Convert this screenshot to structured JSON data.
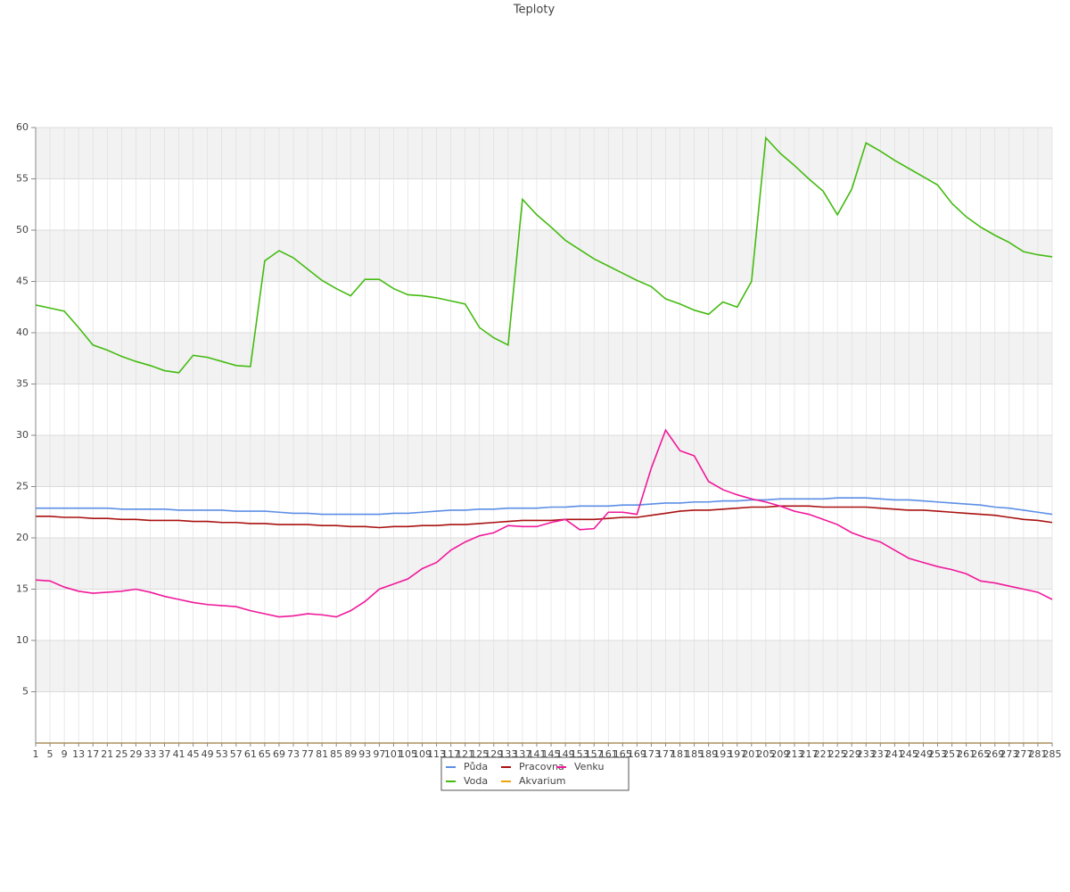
{
  "chart_data": {
    "type": "line",
    "title": "Teploty",
    "x": [
      1,
      5,
      9,
      13,
      17,
      21,
      25,
      29,
      33,
      37,
      41,
      45,
      49,
      53,
      57,
      61,
      65,
      69,
      73,
      77,
      81,
      85,
      89,
      93,
      97,
      101,
      105,
      109,
      113,
      117,
      121,
      125,
      129,
      133,
      137,
      141,
      145,
      149,
      153,
      157,
      161,
      165,
      169,
      173,
      177,
      181,
      185,
      189,
      193,
      197,
      201,
      205,
      209,
      213,
      217,
      221,
      225,
      229,
      233,
      237,
      241,
      245,
      249,
      253,
      257,
      261,
      265,
      269,
      273,
      277,
      281,
      285
    ],
    "xlim": [
      1,
      285
    ],
    "ylim": [
      0,
      60
    ],
    "yticks": [
      5,
      10,
      15,
      20,
      25,
      30,
      35,
      40,
      45,
      50,
      55,
      60
    ],
    "grid": true,
    "series": [
      {
        "name": "Půda",
        "color": "#5b8ee6",
        "values": [
          22.9,
          22.9,
          22.9,
          22.9,
          22.9,
          22.9,
          22.8,
          22.8,
          22.8,
          22.8,
          22.7,
          22.7,
          22.7,
          22.7,
          22.6,
          22.6,
          22.6,
          22.5,
          22.4,
          22.4,
          22.3,
          22.3,
          22.3,
          22.3,
          22.3,
          22.4,
          22.4,
          22.5,
          22.6,
          22.7,
          22.7,
          22.8,
          22.8,
          22.9,
          22.9,
          22.9,
          23.0,
          23.0,
          23.1,
          23.1,
          23.1,
          23.2,
          23.2,
          23.3,
          23.4,
          23.4,
          23.5,
          23.5,
          23.6,
          23.6,
          23.7,
          23.7,
          23.8,
          23.8,
          23.8,
          23.8,
          23.9,
          23.9,
          23.9,
          23.8,
          23.7,
          23.7,
          23.6,
          23.5,
          23.4,
          23.3,
          23.2,
          23.0,
          22.9,
          22.7,
          22.5,
          22.3
        ]
      },
      {
        "name": "Pracovna",
        "color": "#aa1111",
        "values": [
          22.1,
          22.1,
          22.0,
          22.0,
          21.9,
          21.9,
          21.8,
          21.8,
          21.7,
          21.7,
          21.7,
          21.6,
          21.6,
          21.5,
          21.5,
          21.4,
          21.4,
          21.3,
          21.3,
          21.3,
          21.2,
          21.2,
          21.1,
          21.1,
          21.0,
          21.1,
          21.1,
          21.2,
          21.2,
          21.3,
          21.3,
          21.4,
          21.5,
          21.6,
          21.7,
          21.7,
          21.7,
          21.8,
          21.8,
          21.8,
          21.9,
          22.0,
          22.0,
          22.2,
          22.4,
          22.6,
          22.7,
          22.7,
          22.8,
          22.9,
          23.0,
          23.0,
          23.1,
          23.1,
          23.1,
          23.0,
          23.0,
          23.0,
          23.0,
          22.9,
          22.8,
          22.7,
          22.7,
          22.6,
          22.5,
          22.4,
          22.3,
          22.2,
          22.0,
          21.8,
          21.7,
          21.5
        ]
      },
      {
        "name": "Venku",
        "color": "#f0189a",
        "values": [
          15.9,
          15.8,
          15.2,
          14.8,
          14.6,
          14.7,
          14.8,
          15.0,
          14.7,
          14.3,
          14.0,
          13.7,
          13.5,
          13.4,
          13.3,
          12.9,
          12.6,
          12.3,
          12.4,
          12.6,
          12.5,
          12.3,
          12.9,
          13.8,
          15.0,
          15.5,
          16.0,
          17.0,
          17.6,
          18.8,
          19.6,
          20.2,
          20.5,
          21.2,
          21.1,
          21.1,
          21.5,
          21.8,
          20.8,
          20.9,
          22.5,
          22.5,
          22.3,
          26.8,
          30.5,
          28.5,
          28.0,
          25.5,
          24.7,
          24.2,
          23.8,
          23.5,
          23.1,
          22.6,
          22.3,
          21.8,
          21.3,
          20.5,
          20.0,
          19.6,
          18.8,
          18.0,
          17.6,
          17.2,
          16.9,
          16.5,
          15.8,
          15.6,
          15.3,
          15.0,
          14.7,
          14.0
        ]
      },
      {
        "name": "Voda",
        "color": "#44bb11",
        "values": [
          42.7,
          42.4,
          42.1,
          40.5,
          38.8,
          38.3,
          37.7,
          37.2,
          36.8,
          36.3,
          36.1,
          37.8,
          37.6,
          37.2,
          36.8,
          36.7,
          47.0,
          48.0,
          47.3,
          46.2,
          45.1,
          44.3,
          43.6,
          45.2,
          45.2,
          44.3,
          43.7,
          43.6,
          43.4,
          43.1,
          42.8,
          40.5,
          39.5,
          38.8,
          53.0,
          51.5,
          50.3,
          49.0,
          48.1,
          47.2,
          46.5,
          45.8,
          45.1,
          44.5,
          43.3,
          42.8,
          42.2,
          41.8,
          43.0,
          42.5,
          45.0,
          59.0,
          57.5,
          56.3,
          55.0,
          53.8,
          51.5,
          54.0,
          58.5,
          57.7,
          56.8,
          56.0,
          55.2,
          54.4,
          52.6,
          51.3,
          50.3,
          49.5,
          48.8,
          47.9,
          47.6,
          47.4
        ]
      },
      {
        "name": "Akvarium",
        "color": "#f0a30a",
        "values": [
          0,
          0,
          0,
          0,
          0,
          0,
          0,
          0,
          0,
          0,
          0,
          0,
          0,
          0,
          0,
          0,
          0,
          0,
          0,
          0,
          0,
          0,
          0,
          0,
          0,
          0,
          0,
          0,
          0,
          0,
          0,
          0,
          0,
          0,
          0,
          0,
          0,
          0,
          0,
          0,
          0,
          0,
          0,
          0,
          0,
          0,
          0,
          0,
          0,
          0,
          0,
          0,
          0,
          0,
          0,
          0,
          0,
          0,
          0,
          0,
          0,
          0,
          0,
          0,
          0,
          0,
          0,
          0,
          0,
          0,
          0,
          0
        ]
      }
    ]
  }
}
